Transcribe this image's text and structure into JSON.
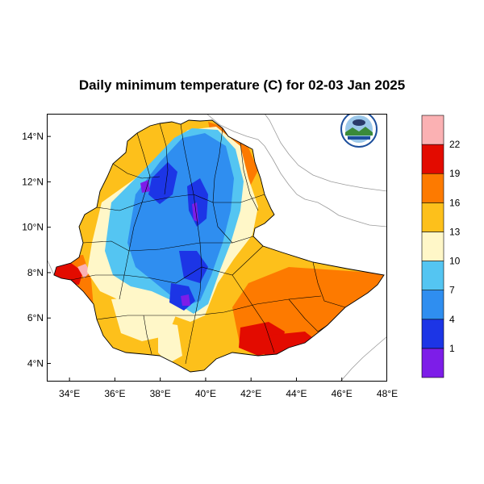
{
  "title": "Daily minimum temperature (C) for 02-03 Jan 2025",
  "map": {
    "lon_range": [
      33,
      48
    ],
    "lat_range": [
      3.2,
      15
    ],
    "x_ticks": [
      "34°E",
      "36°E",
      "38°E",
      "40°E",
      "42°E",
      "44°E",
      "46°E",
      "48°E"
    ],
    "x_tick_values": [
      34,
      36,
      38,
      40,
      42,
      44,
      46,
      48
    ],
    "y_ticks": [
      "14°N",
      "12°N",
      "10°N",
      "8°N",
      "6°N",
      "4°N"
    ],
    "y_tick_values": [
      14,
      12,
      10,
      8,
      6,
      4
    ],
    "logo": {
      "name": "Ethiopian Meteorology Institute",
      "colors": {
        "ring": "#1d4f9c",
        "hills": "#3a8a3a",
        "sky": "#9cc8ea"
      }
    }
  },
  "colorbar": {
    "levels": [
      "1",
      "4",
      "7",
      "10",
      "13",
      "16",
      "19",
      "22"
    ],
    "colors": [
      "#7d1de8",
      "#1c35e6",
      "#2f8ef0",
      "#54c5f2",
      "#fff7c8",
      "#fdc01b",
      "#fd7a00",
      "#e30b00",
      "#fbb1b3"
    ]
  }
}
